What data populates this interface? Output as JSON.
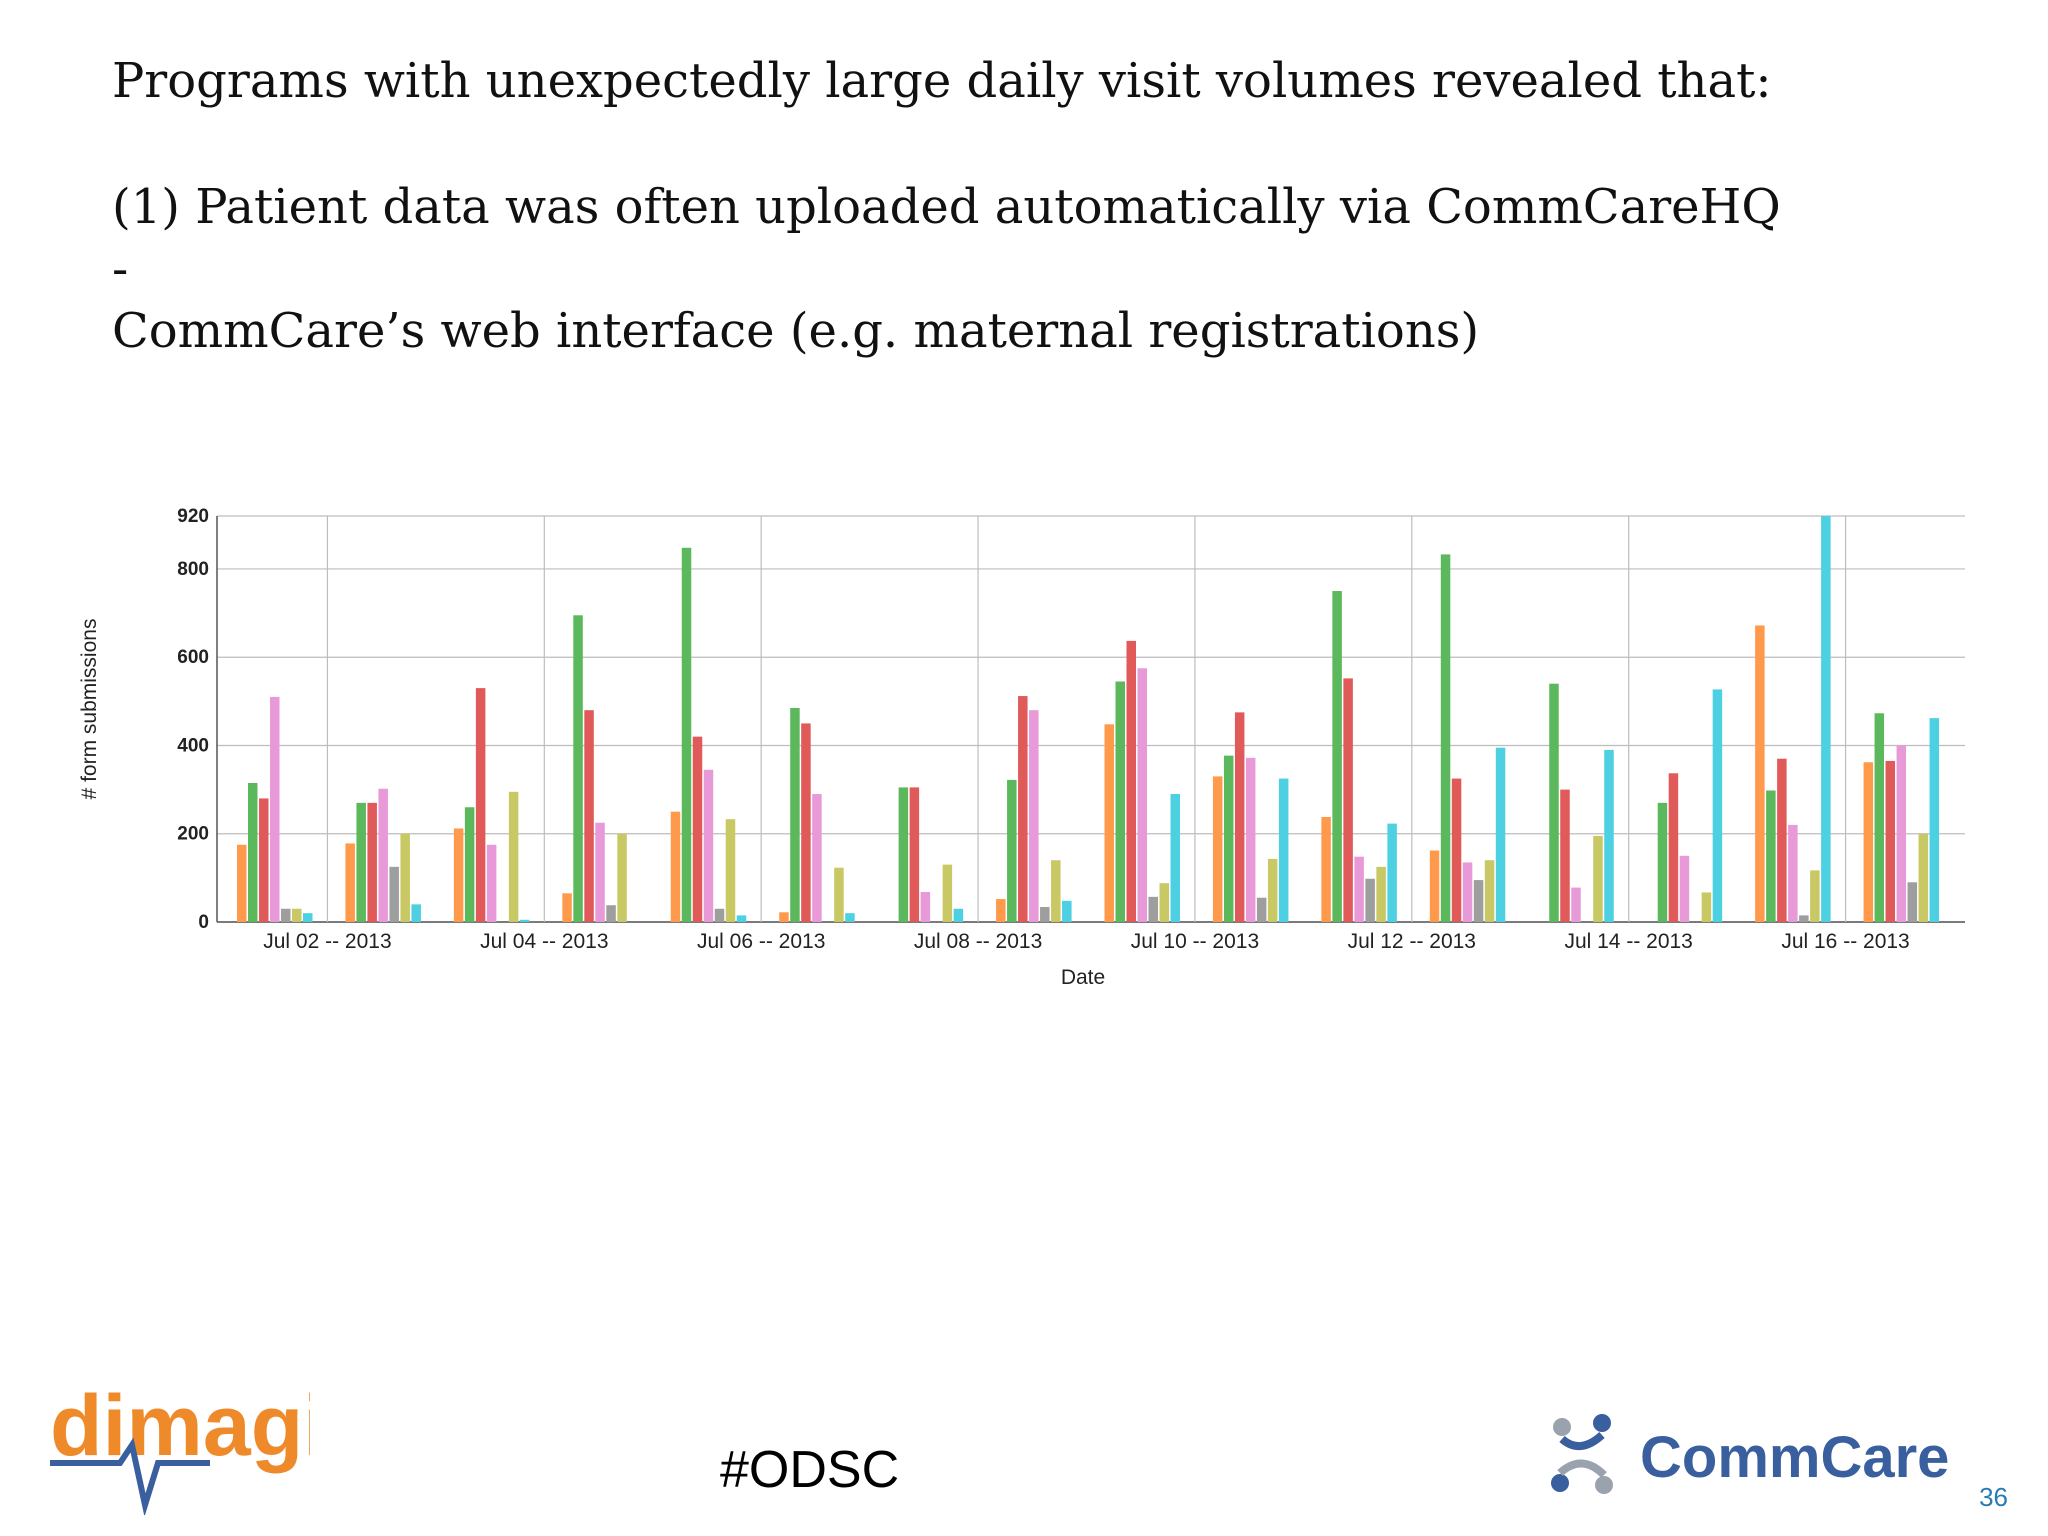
{
  "slide": {
    "heading": "Programs with unexpectedly large daily visit volumes revealed that:",
    "point_1_line_1": "(1) Patient data was often uploaded automatically via CommCareHQ -",
    "point_1_line_2": "CommCare’s web interface (e.g. maternal registrations)",
    "hashtag": "#ODSC",
    "page_number": "36"
  },
  "logos": {
    "left": "dimagi",
    "right": "CommCare"
  },
  "colors": {
    "orange": "#ff9a4d",
    "green": "#5cb85c",
    "red": "#e05a5a",
    "pink": "#e89ad8",
    "gray": "#9e9e9e",
    "olive": "#c8c864",
    "cyan": "#4dd0e1",
    "dimagi_orange": "#ef8a2a",
    "commcare_blue": "#3a5f9e",
    "page_number_blue": "#2a7ab5"
  },
  "chart_data": {
    "type": "bar",
    "title": "",
    "xlabel": "Date",
    "ylabel": "# form submissions",
    "ylim": [
      0,
      920
    ],
    "y_ticks": [
      0,
      200,
      400,
      600,
      800,
      920
    ],
    "grid": true,
    "x_start": "Jul 01 -- 2013",
    "x_end": "Jul 17 -- 2013",
    "x_tick_labels": [
      "Jul 02 -- 2013",
      "Jul 04 -- 2013",
      "Jul 06 -- 2013",
      "Jul 08 -- 2013",
      "Jul 10 -- 2013",
      "Jul 12 -- 2013",
      "Jul 14 -- 2013",
      "Jul 16 -- 2013"
    ],
    "bar_series_order": [
      "orange",
      "green",
      "red",
      "pink",
      "gray",
      "olive",
      "cyan"
    ],
    "days": [
      {
        "date": "Jul 01 -- 2013",
        "values": [
          175,
          315,
          280,
          510,
          30,
          30,
          20
        ]
      },
      {
        "date": "Jul 02 -- 2013",
        "values": [
          178,
          270,
          270,
          302,
          125,
          200,
          40
        ]
      },
      {
        "date": "Jul 03 -- 2013",
        "values": [
          212,
          260,
          530,
          175,
          0,
          295,
          5
        ]
      },
      {
        "date": "Jul 04 -- 2013",
        "values": [
          65,
          695,
          480,
          225,
          38,
          200,
          0
        ]
      },
      {
        "date": "Jul 05 -- 2013",
        "values": [
          250,
          848,
          420,
          345,
          30,
          233,
          15
        ]
      },
      {
        "date": "Jul 06 -- 2013",
        "values": [
          22,
          485,
          450,
          290,
          0,
          123,
          20
        ]
      },
      {
        "date": "Jul 07 -- 2013",
        "values": [
          0,
          305,
          305,
          68,
          0,
          130,
          30
        ]
      },
      {
        "date": "Jul 08 -- 2013",
        "values": [
          52,
          322,
          512,
          480,
          34,
          140,
          48
        ]
      },
      {
        "date": "Jul 09 -- 2013",
        "values": [
          448,
          545,
          637,
          575,
          57,
          88,
          290
        ]
      },
      {
        "date": "Jul 10 -- 2013",
        "values": [
          330,
          377,
          475,
          372,
          55,
          143,
          325
        ]
      },
      {
        "date": "Jul 11 -- 2013",
        "values": [
          238,
          750,
          552,
          148,
          98,
          125,
          223
        ]
      },
      {
        "date": "Jul 12 -- 2013",
        "values": [
          162,
          833,
          325,
          135,
          95,
          140,
          395
        ]
      },
      {
        "date": "Jul 13 -- 2013",
        "values": [
          0,
          540,
          300,
          78,
          0,
          195,
          390
        ]
      },
      {
        "date": "Jul 14 -- 2013",
        "values": [
          0,
          270,
          337,
          150,
          0,
          67,
          527
        ]
      },
      {
        "date": "Jul 15 -- 2013",
        "values": [
          672,
          298,
          370,
          220,
          15,
          117,
          920
        ]
      },
      {
        "date": "Jul 16 -- 2013",
        "values": [
          362,
          473,
          365,
          400,
          90,
          200,
          462
        ]
      }
    ]
  }
}
